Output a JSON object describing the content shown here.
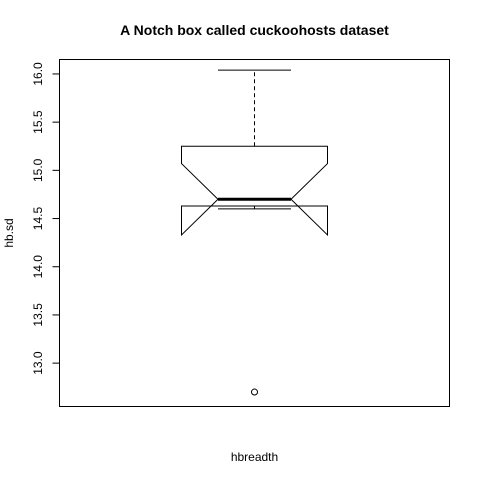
{
  "chart_data": {
    "type": "boxplot",
    "notch": true,
    "title": "A Notch box called cuckoohosts dataset",
    "xlabel": "hbreadth",
    "ylabel": "hb.sd",
    "ylim": [
      12.55,
      16.15
    ],
    "yticks": [
      13.0,
      13.5,
      14.0,
      14.5,
      15.0,
      15.5,
      16.0
    ],
    "ytick_labels": [
      "13.0",
      "13.5",
      "14.0",
      "14.5",
      "15.0",
      "15.5",
      "16.0"
    ],
    "box": {
      "whisker_low": 14.6,
      "q1": 14.63,
      "median": 14.7,
      "q3": 15.25,
      "whisker_high": 16.04,
      "notch_low": 14.33,
      "notch_high": 15.07,
      "outliers": [
        12.7
      ]
    }
  }
}
